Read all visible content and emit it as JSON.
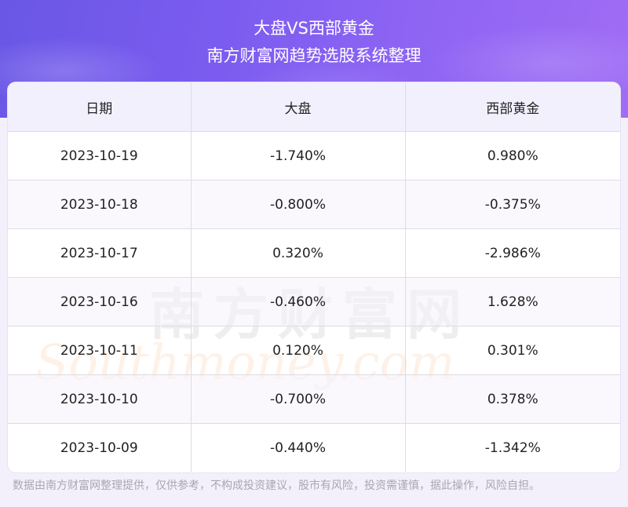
{
  "header": {
    "title": "大盘VS西部黄金",
    "subtitle": "南方财富网趋势选股系统整理"
  },
  "table": {
    "columns": [
      "日期",
      "大盘",
      "西部黄金"
    ],
    "rows": [
      [
        "2023-10-19",
        "-1.740%",
        "0.980%"
      ],
      [
        "2023-10-18",
        "-0.800%",
        "-0.375%"
      ],
      [
        "2023-10-17",
        "0.320%",
        "-2.986%"
      ],
      [
        "2023-10-16",
        "-0.460%",
        "1.628%"
      ],
      [
        "2023-10-11",
        "0.120%",
        "0.301%"
      ],
      [
        "2023-10-10",
        "-0.700%",
        "0.378%"
      ],
      [
        "2023-10-09",
        "-0.440%",
        "-1.342%"
      ]
    ]
  },
  "watermark": {
    "cn": "南方财富网",
    "en": "Southmoney.com"
  },
  "footer": {
    "disclaimer": "数据由南方财富网整理提供，仅供参考，不构成投资建议，股市有风险，投资需谨慎，据此操作，风险自担。"
  }
}
